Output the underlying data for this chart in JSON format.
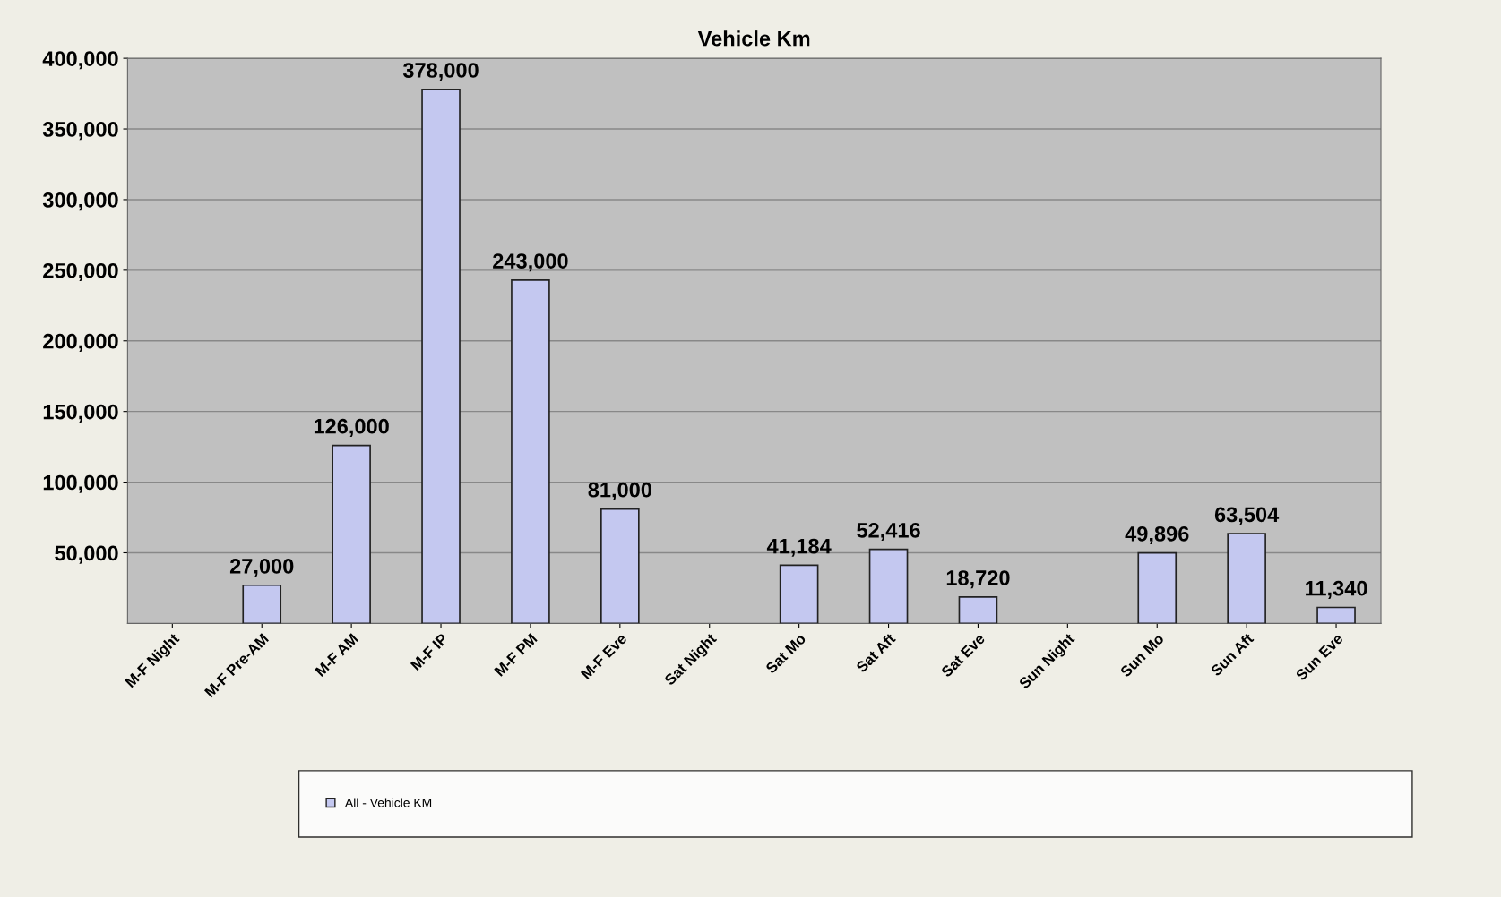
{
  "chart_data": {
    "type": "bar",
    "title": "Vehicle Km",
    "categories": [
      "M-F Night",
      "M-F Pre-AM",
      "M-F AM",
      "M-F IP",
      "M-F PM",
      "M-F Eve",
      "Sat Night",
      "Sat Mo",
      "Sat Aft",
      "Sat Eve",
      "Sun Night",
      "Sun Mo",
      "Sun Aft",
      "Sun Eve"
    ],
    "series": [
      {
        "name": "All - Vehicle KM",
        "color": "#c4c8f0",
        "values": [
          null,
          27000,
          126000,
          378000,
          243000,
          81000,
          null,
          41184,
          52416,
          18720,
          null,
          49896,
          63504,
          11340
        ],
        "value_labels": [
          null,
          "27,000",
          "126,000",
          "378,000",
          "243,000",
          "81,000",
          null,
          "41,184",
          "52,416",
          "18,720",
          null,
          "49,896",
          "63,504",
          "11,340"
        ]
      }
    ],
    "ylim": [
      0,
      400000
    ],
    "yticks": [
      {
        "value": 50000,
        "label": "50,000"
      },
      {
        "value": 100000,
        "label": "100,000"
      },
      {
        "value": 150000,
        "label": "150,000"
      },
      {
        "value": 200000,
        "label": "200,000"
      },
      {
        "value": 250000,
        "label": "250,000"
      },
      {
        "value": 300000,
        "label": "300,000"
      },
      {
        "value": 350000,
        "label": "350,000"
      },
      {
        "value": 400000,
        "label": "400,000"
      }
    ],
    "grid": "y",
    "legend": "bottom"
  }
}
